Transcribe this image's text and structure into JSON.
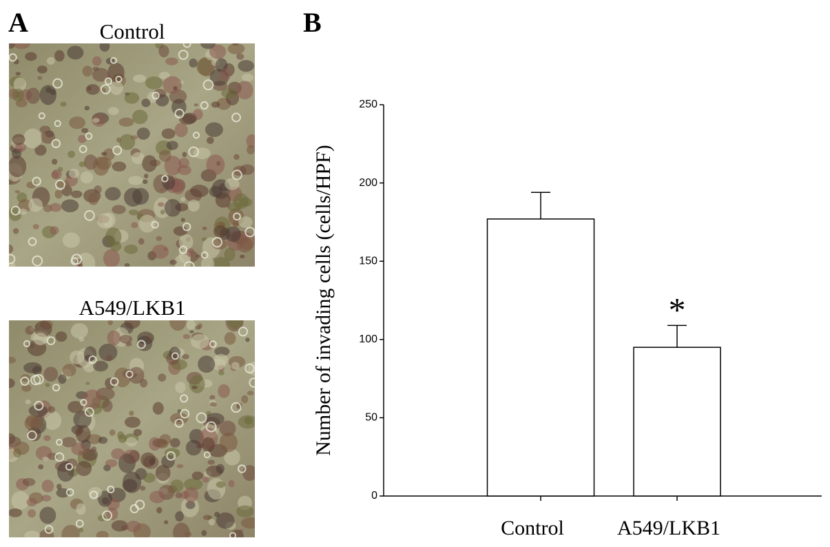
{
  "panel_a": {
    "label": "A",
    "images": [
      {
        "caption": "Control"
      },
      {
        "caption": "A549/LKB1"
      }
    ]
  },
  "chart_data": {
    "type": "bar",
    "panel_label": "B",
    "ylabel": "Number of invading cells (cells/HPF)",
    "categories": [
      "Control",
      "A549/LKB1"
    ],
    "values": [
      177,
      95
    ],
    "errors": [
      17,
      14
    ],
    "annotations": [
      null,
      "*"
    ],
    "color": "#ffffff",
    "ylim": [
      0,
      250
    ],
    "yticks": [
      0,
      50,
      100,
      150,
      200,
      250
    ]
  }
}
